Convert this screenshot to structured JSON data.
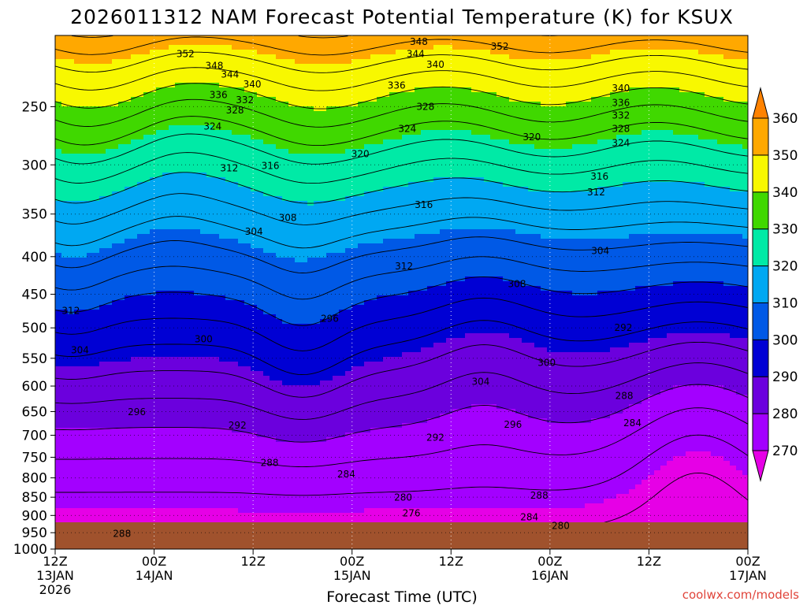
{
  "chart_data": {
    "type": "contour",
    "title": "2026011312 NAM Forecast Potential Temperature (K) for KSUX",
    "xlabel": "Forecast Time (UTC)",
    "ylabel": "",
    "credit": "coolwx.com/models",
    "y_scale": "log-pressure",
    "y_ticks": [
      "250",
      "300",
      "350",
      "400",
      "450",
      "500",
      "550",
      "600",
      "650",
      "700",
      "750",
      "800",
      "850",
      "900",
      "950",
      "1000"
    ],
    "y_tick_values": [
      250,
      300,
      350,
      400,
      450,
      500,
      550,
      600,
      650,
      700,
      750,
      800,
      850,
      900,
      950,
      1000
    ],
    "ylim": [
      200,
      1000
    ],
    "x_ticks": [
      {
        "hour": 0,
        "label": "12Z",
        "date": "13JAN",
        "year": "2026"
      },
      {
        "hour": 12,
        "label": "00Z",
        "date": "14JAN",
        "year": ""
      },
      {
        "hour": 24,
        "label": "12Z",
        "date": "",
        "year": ""
      },
      {
        "hour": 36,
        "label": "00Z",
        "date": "15JAN",
        "year": ""
      },
      {
        "hour": 48,
        "label": "12Z",
        "date": "",
        "year": ""
      },
      {
        "hour": 60,
        "label": "00Z",
        "date": "16JAN",
        "year": ""
      },
      {
        "hour": 72,
        "label": "12Z",
        "date": "",
        "year": ""
      },
      {
        "hour": 84,
        "label": "00Z",
        "date": "17JAN",
        "year": ""
      }
    ],
    "xlim": [
      0,
      84
    ],
    "surface_pressure": 970,
    "colorbar": {
      "ticks": [
        "270",
        "280",
        "290",
        "300",
        "310",
        "320",
        "330",
        "340",
        "350",
        "360"
      ],
      "levels": [
        270,
        280,
        290,
        300,
        310,
        320,
        330,
        340,
        350,
        360
      ],
      "colors": [
        "#e600e6",
        "#a300ff",
        "#6b00dd",
        "#0000d4",
        "#0059e6",
        "#00a8f2",
        "#00eaa6",
        "#40d800",
        "#f8f800",
        "#ffa800",
        "#ff8200"
      ]
    },
    "contour_labels": [
      {
        "value": "352",
        "hour": 15.8,
        "p": 212
      },
      {
        "value": "348",
        "hour": 19.3,
        "p": 220
      },
      {
        "value": "344",
        "hour": 21.2,
        "p": 226
      },
      {
        "value": "340",
        "hour": 23.9,
        "p": 233
      },
      {
        "value": "336",
        "hour": 19.8,
        "p": 241
      },
      {
        "value": "332",
        "hour": 23.0,
        "p": 245
      },
      {
        "value": "328",
        "hour": 21.8,
        "p": 253
      },
      {
        "value": "324",
        "hour": 19.1,
        "p": 266
      },
      {
        "value": "312",
        "hour": 21.1,
        "p": 303
      },
      {
        "value": "316",
        "hour": 26.1,
        "p": 301
      },
      {
        "value": "320",
        "hour": 37.0,
        "p": 290
      },
      {
        "value": "348",
        "hour": 44.1,
        "p": 204
      },
      {
        "value": "344",
        "hour": 43.7,
        "p": 212
      },
      {
        "value": "340",
        "hour": 46.1,
        "p": 219
      },
      {
        "value": "336",
        "hour": 41.4,
        "p": 234
      },
      {
        "value": "328",
        "hour": 44.9,
        "p": 250
      },
      {
        "value": "324",
        "hour": 42.7,
        "p": 268
      },
      {
        "value": "316",
        "hour": 44.7,
        "p": 340
      },
      {
        "value": "312",
        "hour": 42.3,
        "p": 412
      },
      {
        "value": "352",
        "hour": 53.9,
        "p": 207
      },
      {
        "value": "320",
        "hour": 57.8,
        "p": 275
      },
      {
        "value": "340",
        "hour": 68.6,
        "p": 236
      },
      {
        "value": "336",
        "hour": 68.6,
        "p": 247
      },
      {
        "value": "332",
        "hour": 68.6,
        "p": 257
      },
      {
        "value": "328",
        "hour": 68.6,
        "p": 268
      },
      {
        "value": "324",
        "hour": 68.6,
        "p": 280
      },
      {
        "value": "316",
        "hour": 66.0,
        "p": 311
      },
      {
        "value": "312",
        "hour": 65.6,
        "p": 327
      },
      {
        "value": "308",
        "hour": 28.2,
        "p": 354
      },
      {
        "value": "304",
        "hour": 24.1,
        "p": 370
      },
      {
        "value": "304",
        "hour": 66.1,
        "p": 393
      },
      {
        "value": "308",
        "hour": 56.0,
        "p": 436
      },
      {
        "value": "312",
        "hour": 1.9,
        "p": 474
      },
      {
        "value": "304",
        "hour": 3.0,
        "p": 536
      },
      {
        "value": "296",
        "hour": 33.3,
        "p": 486
      },
      {
        "value": "300",
        "hour": 18.0,
        "p": 518
      },
      {
        "value": "304",
        "hour": 51.6,
        "p": 592
      },
      {
        "value": "300",
        "hour": 59.6,
        "p": 558
      },
      {
        "value": "292",
        "hour": 68.9,
        "p": 500
      },
      {
        "value": "288",
        "hour": 69.0,
        "p": 619
      },
      {
        "value": "296",
        "hour": 9.9,
        "p": 651
      },
      {
        "value": "292",
        "hour": 22.1,
        "p": 679
      },
      {
        "value": "292",
        "hour": 46.1,
        "p": 705
      },
      {
        "value": "296",
        "hour": 55.5,
        "p": 677
      },
      {
        "value": "284",
        "hour": 70.0,
        "p": 674
      },
      {
        "value": "288",
        "hour": 26.0,
        "p": 763
      },
      {
        "value": "284",
        "hour": 35.3,
        "p": 791
      },
      {
        "value": "280",
        "hour": 42.2,
        "p": 851
      },
      {
        "value": "276",
        "hour": 43.2,
        "p": 894
      },
      {
        "value": "288",
        "hour": 58.7,
        "p": 845
      },
      {
        "value": "284",
        "hour": 57.5,
        "p": 905
      },
      {
        "value": "280",
        "hour": 61.3,
        "p": 930
      },
      {
        "value": "288",
        "hour": 8.1,
        "p": 953
      }
    ]
  }
}
